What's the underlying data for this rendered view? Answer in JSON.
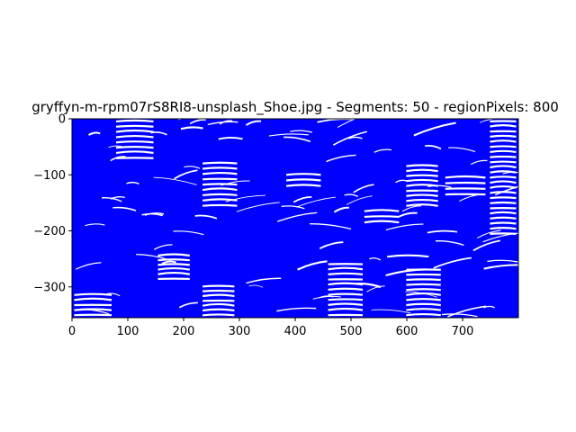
{
  "chart_data": {
    "type": "image",
    "title": "gryffyn-m-rpm07rS8RI8-unsplash_Shoe.jpg - Segments: 50 - regionPixels: 800",
    "xlabel": "",
    "ylabel": "",
    "xlim": [
      0,
      800
    ],
    "ylim": [
      -355,
      0
    ],
    "x_ticks": [
      0,
      100,
      200,
      300,
      400,
      500,
      600,
      700
    ],
    "y_ticks": [
      0,
      -100,
      -200,
      -300
    ],
    "y_tick_labels": [
      "0",
      "−100",
      "−200",
      "−300"
    ],
    "grid": false,
    "series_color": "#0000ff",
    "background_color": "#ffffff"
  }
}
